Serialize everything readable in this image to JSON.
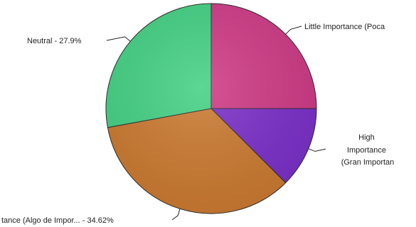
{
  "chart_data": {
    "type": "pie",
    "slices": [
      {
        "name": "Little Importance (Poca",
        "label_lines": [
          "Little Importance (Poca"
        ],
        "percent": 25.0,
        "color": "#cf3a86",
        "label_key": "little"
      },
      {
        "name": "High Importance (Gran Importan",
        "label_lines": [
          "High",
          "Importance",
          "(Gran Importan"
        ],
        "percent": 12.5,
        "color": "#7b2fc9",
        "label_key": "high"
      },
      {
        "name": "tance (Algo de Impor... - 34.62%",
        "label_lines": [
          "tance (Algo de Impor... - 34.62%"
        ],
        "percent": 34.62,
        "color": "#cc7a30",
        "label_key": "some"
      },
      {
        "name": "Neutral - 27.9%",
        "label_lines": [
          "Neutral - 27.9%"
        ],
        "percent": 27.9,
        "color": "#43d183",
        "label_key": "neutral"
      }
    ],
    "legend": "none"
  }
}
